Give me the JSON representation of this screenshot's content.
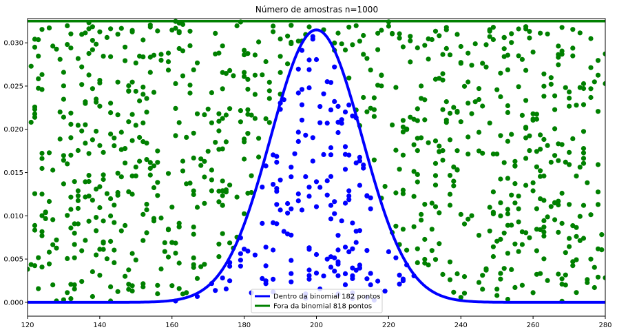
{
  "chart_data": {
    "type": "scatter",
    "title": "Número de amostras n=1000",
    "xlabel": "",
    "ylabel": "",
    "xlim": [
      120,
      280
    ],
    "ylim": [
      -0.0016,
      0.0328
    ],
    "xticks": [
      120,
      140,
      160,
      180,
      200,
      220,
      240,
      260,
      280
    ],
    "yticks": [
      0.0,
      0.005,
      0.01,
      0.015,
      0.02,
      0.025,
      0.03
    ],
    "ytick_labels": [
      "0.000",
      "0.005",
      "0.010",
      "0.015",
      "0.020",
      "0.025",
      "0.030"
    ],
    "grid": false,
    "legend_position": "bottom-center",
    "series": [
      {
        "name": "Dentro da binomial 182 pontos",
        "kind": "line",
        "color": "#0000ff",
        "distribution": {
          "mean": 200,
          "sd": 12.65,
          "peak": 0.0315
        }
      },
      {
        "name": "Fora da binomial 818 pontos",
        "kind": "hline",
        "color": "#008000",
        "y": 0.0325
      },
      {
        "kind": "points",
        "color": "#0000ff",
        "count": 182
      },
      {
        "kind": "points",
        "color": "#008000",
        "count": 818
      }
    ]
  },
  "colors": {
    "inside": "#0000ff",
    "outside": "#008000",
    "axis": "#000000"
  }
}
